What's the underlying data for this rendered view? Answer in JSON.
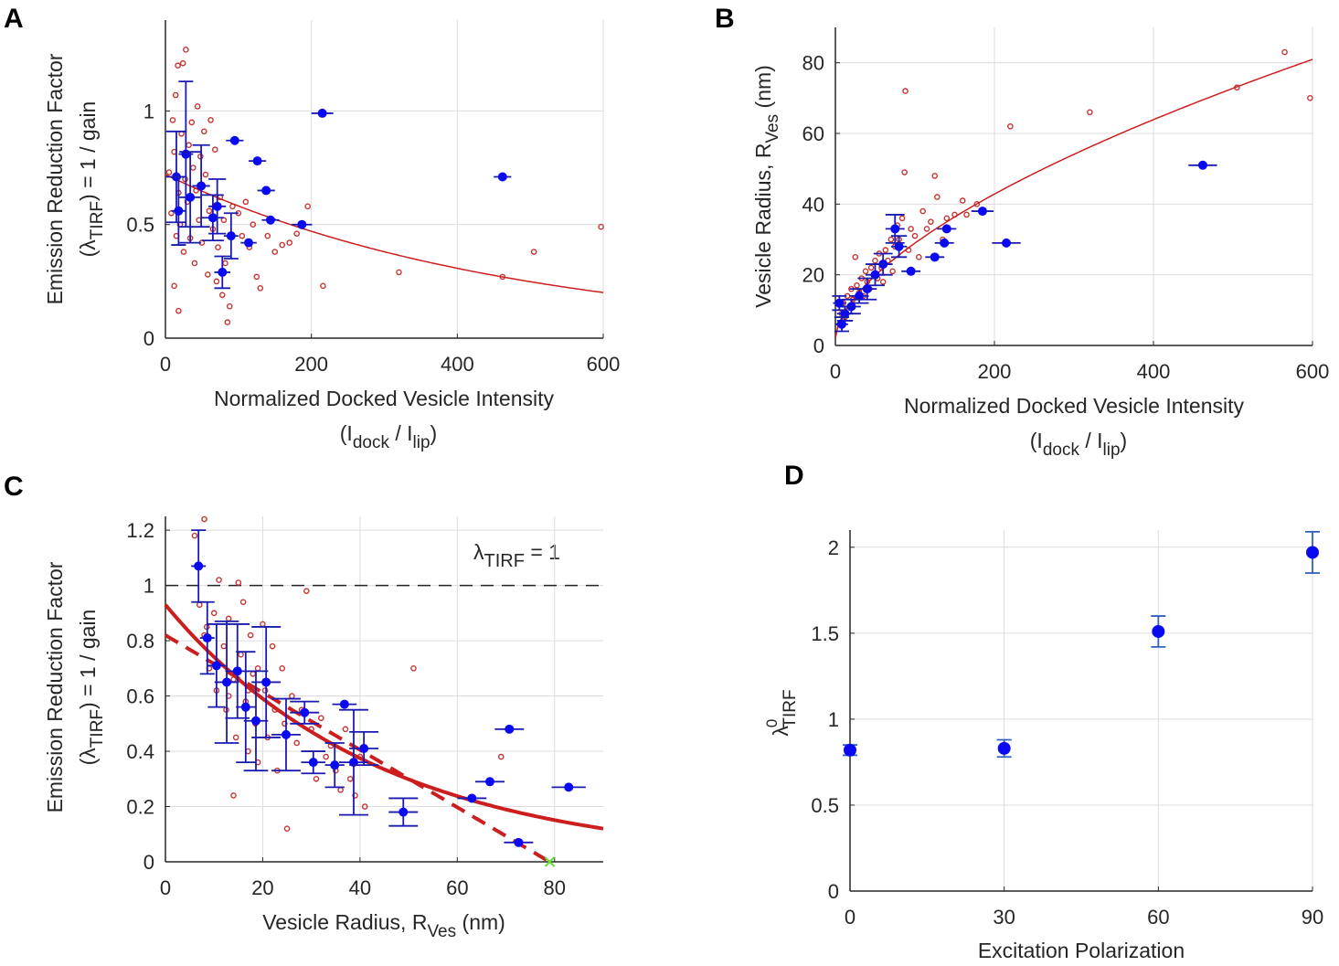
{
  "colors": {
    "scatter": "#c83232",
    "points": "#0a0af0",
    "errorbar": "#1a1ab0",
    "fit": "#cc1e1e",
    "grid": "#dcdcdc",
    "axis": "#262626",
    "x_marker": "#66dd33"
  },
  "chart_data": [
    {
      "panel": "A",
      "type": "scatter",
      "xlabel": "Normalized Docked Vesicle Intensity",
      "xlabel2": {
        "open": "(I",
        "sub1": "dock",
        "mid": " / I",
        "sub2": "lip",
        "close": ")"
      },
      "ylabel": "Emission Reduction Factor",
      "ylabel2": {
        "open": "(λ",
        "sub": "TIRF",
        "close": ")  =  1 / gain"
      },
      "xlim": [
        0,
        600
      ],
      "ylim": [
        0,
        1.4
      ],
      "xticks": [
        0,
        200,
        400,
        600
      ],
      "yticks": [
        0,
        0.5,
        1
      ],
      "xtick_labels": [
        "0",
        "200",
        "400",
        "600"
      ],
      "ytick_labels": [
        "0",
        "0.5",
        "1"
      ],
      "grid": true,
      "scatter": [
        [
          5,
          0.73
        ],
        [
          8,
          0.55
        ],
        [
          10,
          0.96
        ],
        [
          12,
          0.82
        ],
        [
          14,
          1.07
        ],
        [
          15,
          0.45
        ],
        [
          17,
          1.2
        ],
        [
          18,
          0.64
        ],
        [
          20,
          0.5
        ],
        [
          22,
          0.9
        ],
        [
          24,
          1.21
        ],
        [
          25,
          0.38
        ],
        [
          27,
          0.7
        ],
        [
          28,
          1.27
        ],
        [
          30,
          0.6
        ],
        [
          32,
          0.85
        ],
        [
          34,
          0.44
        ],
        [
          36,
          0.95
        ],
        [
          38,
          0.75
        ],
        [
          40,
          0.33
        ],
        [
          42,
          0.65
        ],
        [
          44,
          1.02
        ],
        [
          46,
          0.52
        ],
        [
          48,
          0.8
        ],
        [
          50,
          0.42
        ],
        [
          53,
          0.91
        ],
        [
          55,
          0.72
        ],
        [
          58,
          0.28
        ],
        [
          60,
          0.56
        ],
        [
          62,
          0.96
        ],
        [
          65,
          0.48
        ],
        [
          68,
          0.83
        ],
        [
          70,
          0.25
        ],
        [
          72,
          0.4
        ],
        [
          75,
          0.62
        ],
        [
          78,
          0.19
        ],
        [
          80,
          0.52
        ],
        [
          82,
          0.33
        ],
        [
          85,
          0.07
        ],
        [
          88,
          0.14
        ],
        [
          92,
          0.58
        ],
        [
          100,
          0.55
        ],
        [
          105,
          0.45
        ],
        [
          110,
          0.6
        ],
        [
          115,
          0.4
        ],
        [
          120,
          0.5
        ],
        [
          125,
          0.27
        ],
        [
          130,
          0.22
        ],
        [
          140,
          0.45
        ],
        [
          150,
          0.38
        ],
        [
          160,
          0.41
        ],
        [
          170,
          0.42
        ],
        [
          180,
          0.46
        ],
        [
          195,
          0.58
        ],
        [
          18,
          0.12
        ],
        [
          12,
          0.23
        ],
        [
          216,
          0.23
        ],
        [
          320,
          0.29
        ],
        [
          462,
          0.27
        ],
        [
          505,
          0.38
        ],
        [
          597,
          0.49
        ]
      ],
      "points": [
        {
          "x": 215,
          "y": 0.99,
          "xerr": 15,
          "yerr": 0
        },
        {
          "x": 462,
          "y": 0.71,
          "xerr": 12,
          "yerr": 0
        },
        {
          "x": 95,
          "y": 0.87,
          "xerr": 12,
          "yerr": 0
        },
        {
          "x": 126,
          "y": 0.78,
          "xerr": 12,
          "yerr": 0
        },
        {
          "x": 138,
          "y": 0.65,
          "xerr": 12,
          "yerr": 0
        },
        {
          "x": 144,
          "y": 0.52,
          "xerr": 12,
          "yerr": 0
        },
        {
          "x": 187,
          "y": 0.5,
          "xerr": 14,
          "yerr": 0
        },
        {
          "x": 114,
          "y": 0.42,
          "xerr": 11,
          "yerr": 0
        },
        {
          "x": 78,
          "y": 0.29,
          "xerr": 11,
          "yerr": 0.07
        },
        {
          "x": 90,
          "y": 0.45,
          "xerr": 10,
          "yerr": 0.1
        },
        {
          "x": 65,
          "y": 0.53,
          "xerr": 15,
          "yerr": 0.1
        },
        {
          "x": 71,
          "y": 0.58,
          "xerr": 12,
          "yerr": 0.12
        },
        {
          "x": 28,
          "y": 0.81,
          "xerr": 10,
          "yerr": 0.32
        },
        {
          "x": 15,
          "y": 0.71,
          "xerr": 14,
          "yerr": 0.2
        },
        {
          "x": 49,
          "y": 0.67,
          "xerr": 12,
          "yerr": 0.18
        },
        {
          "x": 34,
          "y": 0.62,
          "xerr": 15,
          "yerr": 0.2
        },
        {
          "x": 18,
          "y": 0.56,
          "xerr": 10,
          "yerr": 0.15
        }
      ],
      "fits": [
        {
          "style": "solid",
          "formula": "0.72*exp(-x/470)"
        }
      ]
    },
    {
      "panel": "B",
      "type": "scatter",
      "xlabel": "Normalized Docked Vesicle Intensity",
      "xlabel2": {
        "open": "(I",
        "sub1": "dock",
        "mid": " / I",
        "sub2": "lip",
        "close": ")"
      },
      "ylabel": {
        "main": "Vesicle Radius, R",
        "sub": "Ves",
        "unit": " (nm)"
      },
      "xlim": [
        0,
        600
      ],
      "ylim": [
        0,
        90
      ],
      "xticks": [
        0,
        200,
        400,
        600
      ],
      "yticks": [
        0,
        20,
        40,
        60,
        80
      ],
      "xtick_labels": [
        "0",
        "200",
        "400",
        "600"
      ],
      "ytick_labels": [
        "0",
        "20",
        "40",
        "60",
        "80"
      ],
      "grid": true,
      "scatter": [
        [
          5,
          6
        ],
        [
          8,
          9
        ],
        [
          10,
          12
        ],
        [
          12,
          8
        ],
        [
          15,
          14
        ],
        [
          18,
          11
        ],
        [
          20,
          16
        ],
        [
          22,
          13
        ],
        [
          25,
          25
        ],
        [
          27,
          17
        ],
        [
          30,
          15
        ],
        [
          33,
          19
        ],
        [
          35,
          14
        ],
        [
          38,
          21
        ],
        [
          40,
          18
        ],
        [
          43,
          16
        ],
        [
          45,
          22
        ],
        [
          48,
          20
        ],
        [
          50,
          24
        ],
        [
          53,
          19
        ],
        [
          55,
          26
        ],
        [
          58,
          22
        ],
        [
          60,
          18
        ],
        [
          63,
          27
        ],
        [
          66,
          24
        ],
        [
          70,
          30
        ],
        [
          72,
          21
        ],
        [
          75,
          28
        ],
        [
          78,
          34
        ],
        [
          80,
          30
        ],
        [
          84,
          36
        ],
        [
          87,
          49
        ],
        [
          88,
          72
        ],
        [
          92,
          27
        ],
        [
          95,
          33
        ],
        [
          100,
          31
        ],
        [
          105,
          25
        ],
        [
          110,
          38
        ],
        [
          115,
          33
        ],
        [
          120,
          35
        ],
        [
          125,
          48
        ],
        [
          128,
          42
        ],
        [
          135,
          30
        ],
        [
          140,
          36
        ],
        [
          150,
          37
        ],
        [
          160,
          41
        ],
        [
          165,
          37
        ],
        [
          178,
          40
        ],
        [
          220,
          62
        ],
        [
          320,
          66
        ],
        [
          505,
          73
        ],
        [
          565,
          83
        ],
        [
          597,
          70
        ]
      ],
      "points": [
        {
          "x": 185,
          "y": 38,
          "xerr": 14,
          "yerr": 0
        },
        {
          "x": 215,
          "y": 29,
          "xerr": 18,
          "yerr": 0
        },
        {
          "x": 462,
          "y": 51,
          "xerr": 18,
          "yerr": 0
        },
        {
          "x": 140,
          "y": 33,
          "xerr": 12,
          "yerr": 0
        },
        {
          "x": 137,
          "y": 29,
          "xerr": 12,
          "yerr": 0
        },
        {
          "x": 125,
          "y": 25,
          "xerr": 12,
          "yerr": 0
        },
        {
          "x": 95,
          "y": 21,
          "xerr": 12,
          "yerr": 0
        },
        {
          "x": 80,
          "y": 28,
          "xerr": 10,
          "yerr": 3
        },
        {
          "x": 75,
          "y": 33,
          "xerr": 12,
          "yerr": 4
        },
        {
          "x": 60,
          "y": 23,
          "xerr": 12,
          "yerr": 3
        },
        {
          "x": 50,
          "y": 20,
          "xerr": 12,
          "yerr": 3
        },
        {
          "x": 40,
          "y": 16,
          "xerr": 12,
          "yerr": 3
        },
        {
          "x": 30,
          "y": 14,
          "xerr": 12,
          "yerr": 2
        },
        {
          "x": 20,
          "y": 11,
          "xerr": 12,
          "yerr": 2
        },
        {
          "x": 12,
          "y": 9,
          "xerr": 10,
          "yerr": 2
        },
        {
          "x": 8,
          "y": 6,
          "xerr": 8,
          "yerr": 2
        },
        {
          "x": 5,
          "y": 12,
          "xerr": 8,
          "yerr": 2
        }
      ],
      "fits": [
        {
          "style": "solid",
          "formula": "2+1.7*x^0.6"
        }
      ]
    },
    {
      "panel": "C",
      "type": "scatter",
      "xlabel": {
        "main": "Vesicle Radius, R",
        "sub": "Ves",
        "unit": " (nm)"
      },
      "ylabel": "Emission Reduction Factor",
      "ylabel2": {
        "open": "(λ",
        "sub": "TIRF",
        "close": ")  =  1 / gain"
      },
      "xlim": [
        0,
        90
      ],
      "ylim": [
        0,
        1.25
      ],
      "xticks": [
        0,
        20,
        40,
        60,
        80
      ],
      "yticks": [
        0,
        0.2,
        0.4,
        0.6,
        0.8,
        1,
        1.2
      ],
      "xtick_labels": [
        "0",
        "20",
        "40",
        "60",
        "80"
      ],
      "ytick_labels": [
        "0",
        "0.2",
        "0.4",
        "0.6",
        "0.8",
        "1",
        "1.2"
      ],
      "grid": true,
      "annotation": {
        "main": "λ",
        "sub": "TIRF",
        "rest": "  =  1"
      },
      "reference_line": 1,
      "scatter": [
        [
          6,
          1.18
        ],
        [
          7,
          0.93
        ],
        [
          8,
          1.24
        ],
        [
          8.5,
          0.85
        ],
        [
          9,
          0.7
        ],
        [
          10,
          0.9
        ],
        [
          10.5,
          0.62
        ],
        [
          11,
          1.02
        ],
        [
          12,
          0.78
        ],
        [
          12.5,
          0.55
        ],
        [
          13,
          0.88
        ],
        [
          14,
          0.66
        ],
        [
          14.5,
          0.45
        ],
        [
          15,
          1.01
        ],
        [
          15.5,
          0.75
        ],
        [
          16,
          0.94
        ],
        [
          16.5,
          0.58
        ],
        [
          17,
          0.4
        ],
        [
          17.5,
          0.82
        ],
        [
          18,
          0.68
        ],
        [
          18.5,
          0.5
        ],
        [
          19,
          0.36
        ],
        [
          20,
          0.86
        ],
        [
          20.5,
          0.62
        ],
        [
          21,
          0.45
        ],
        [
          22,
          0.78
        ],
        [
          22.5,
          0.55
        ],
        [
          23,
          0.33
        ],
        [
          24,
          0.7
        ],
        [
          24.5,
          0.5
        ],
        [
          25,
          0.12
        ],
        [
          26,
          0.6
        ],
        [
          27,
          0.43
        ],
        [
          28,
          0.55
        ],
        [
          29,
          0.98
        ],
        [
          30,
          0.48
        ],
        [
          31,
          0.3
        ],
        [
          32,
          0.52
        ],
        [
          33,
          0.38
        ],
        [
          34,
          0.42
        ],
        [
          35,
          0.33
        ],
        [
          36,
          0.26
        ],
        [
          37,
          0.48
        ],
        [
          38,
          0.3
        ],
        [
          39,
          0.24
        ],
        [
          40,
          0.38
        ],
        [
          41,
          0.2
        ],
        [
          51,
          0.7
        ],
        [
          69,
          0.38
        ],
        [
          8,
          0.82
        ],
        [
          11,
          0.72
        ],
        [
          13,
          0.6
        ],
        [
          17,
          0.62
        ],
        [
          19,
          0.7
        ],
        [
          14,
          0.24
        ]
      ],
      "points": [
        {
          "x": 6.8,
          "y": 1.07,
          "xerr": 1.5,
          "yerr": 0.13
        },
        {
          "x": 8.6,
          "y": 0.81,
          "xerr": 1.5,
          "yerr": 0.13
        },
        {
          "x": 10.5,
          "y": 0.71,
          "xerr": 1.8,
          "yerr": 0.15
        },
        {
          "x": 12.6,
          "y": 0.65,
          "xerr": 2.5,
          "yerr": 0.22
        },
        {
          "x": 14.8,
          "y": 0.69,
          "xerr": 2.5,
          "yerr": 0.17
        },
        {
          "x": 16.5,
          "y": 0.56,
          "xerr": 2,
          "yerr": 0.2
        },
        {
          "x": 18.6,
          "y": 0.51,
          "xerr": 2.5,
          "yerr": 0.18
        },
        {
          "x": 20.7,
          "y": 0.65,
          "xerr": 3,
          "yerr": 0.2
        },
        {
          "x": 24.8,
          "y": 0.46,
          "xerr": 3,
          "yerr": 0.13
        },
        {
          "x": 28.6,
          "y": 0.54,
          "xerr": 3,
          "yerr": 0.04
        },
        {
          "x": 30.4,
          "y": 0.36,
          "xerr": 2.5,
          "yerr": 0.04
        },
        {
          "x": 34.8,
          "y": 0.35,
          "xerr": 2,
          "yerr": 0.08
        },
        {
          "x": 36.8,
          "y": 0.57,
          "xerr": 2.5,
          "yerr": 0
        },
        {
          "x": 38.7,
          "y": 0.36,
          "xerr": 3,
          "yerr": 0.19
        },
        {
          "x": 40.8,
          "y": 0.41,
          "xerr": 3,
          "yerr": 0.06
        },
        {
          "x": 48.9,
          "y": 0.18,
          "xerr": 3,
          "yerr": 0.05
        },
        {
          "x": 63,
          "y": 0.23,
          "xerr": 3,
          "yerr": 0
        },
        {
          "x": 66.7,
          "y": 0.29,
          "xerr": 3,
          "yerr": 0
        },
        {
          "x": 70.7,
          "y": 0.48,
          "xerr": 3,
          "yerr": 0
        },
        {
          "x": 72.6,
          "y": 0.07,
          "xerr": 3,
          "yerr": 0
        },
        {
          "x": 82.9,
          "y": 0.27,
          "xerr": 3.5,
          "yerr": 0
        }
      ],
      "fits": [
        {
          "style": "solid",
          "formula": "0.93*exp(-x/44)"
        },
        {
          "style": "dashed",
          "formula": "0.82*(1-x/79)"
        }
      ],
      "x_marker": [
        79,
        0
      ]
    },
    {
      "panel": "D",
      "type": "scatter",
      "xlabel": "Excitation Polarization",
      "ylabel": {
        "main": "λ",
        "sup": "0",
        "sub": "TIRF"
      },
      "xlim": [
        0,
        90
      ],
      "ylim": [
        0,
        2.1
      ],
      "xticks": [
        0,
        30,
        60,
        90
      ],
      "yticks": [
        0,
        0.5,
        1,
        1.5,
        2
      ],
      "xtick_labels": [
        "0",
        "30",
        "60",
        "90"
      ],
      "ytick_labels": [
        "0",
        "0.5",
        "1",
        "1.5",
        "2"
      ],
      "grid": true,
      "points": [
        {
          "x": 0,
          "y": 0.82,
          "xerr": 0,
          "yerr": 0.03
        },
        {
          "x": 30,
          "y": 0.83,
          "xerr": 0,
          "yerr": 0.05
        },
        {
          "x": 60,
          "y": 1.51,
          "xerr": 0,
          "yerr": 0.09
        },
        {
          "x": 90,
          "y": 1.97,
          "xerr": 0,
          "yerr": 0.12
        }
      ]
    }
  ]
}
